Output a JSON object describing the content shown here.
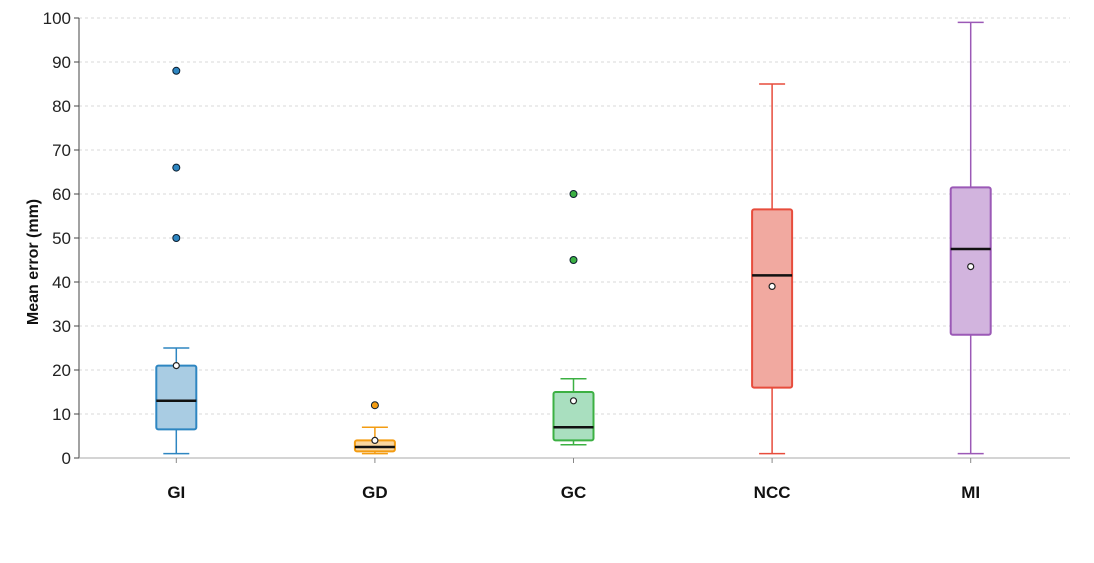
{
  "chart_data": {
    "type": "box",
    "title": "",
    "xlabel": "",
    "ylabel": "Mean error (mm)",
    "ylim": [
      0,
      100
    ],
    "yticks": [
      0,
      10,
      20,
      30,
      40,
      50,
      60,
      70,
      80,
      90,
      100
    ],
    "grid": "horizontal dashed",
    "categories": [
      "GI",
      "GD",
      "GC",
      "NCC",
      "MI"
    ],
    "series": [
      {
        "category": "GI",
        "color": "#2e86c1",
        "fill": "#a9cce3",
        "whisker_low": 1,
        "q1": 6.5,
        "median": 13,
        "q3": 21,
        "whisker_high": 25,
        "mean": 21,
        "outliers": [
          50,
          66,
          88
        ]
      },
      {
        "category": "GD",
        "color": "#f39c12",
        "fill": "#fad7a0",
        "whisker_low": 1,
        "q1": 1.5,
        "median": 2.5,
        "q3": 4,
        "whisker_high": 7,
        "mean": 4,
        "outliers": [
          12
        ]
      },
      {
        "category": "GC",
        "color": "#3cb043",
        "fill": "#a9dfbf",
        "whisker_low": 3,
        "q1": 4,
        "median": 7,
        "q3": 15,
        "whisker_high": 18,
        "mean": 13,
        "outliers": [
          45,
          60
        ]
      },
      {
        "category": "NCC",
        "color": "#e74c3c",
        "fill": "#f1a9a0",
        "whisker_low": 1,
        "q1": 16,
        "median": 41.5,
        "q3": 56.5,
        "whisker_high": 85,
        "mean": 39,
        "outliers": []
      },
      {
        "category": "MI",
        "color": "#9b59b6",
        "fill": "#d2b4de",
        "whisker_low": 1,
        "q1": 28,
        "median": 47.5,
        "q3": 61.5,
        "whisker_high": 99,
        "mean": 43.5,
        "outliers": []
      }
    ]
  }
}
